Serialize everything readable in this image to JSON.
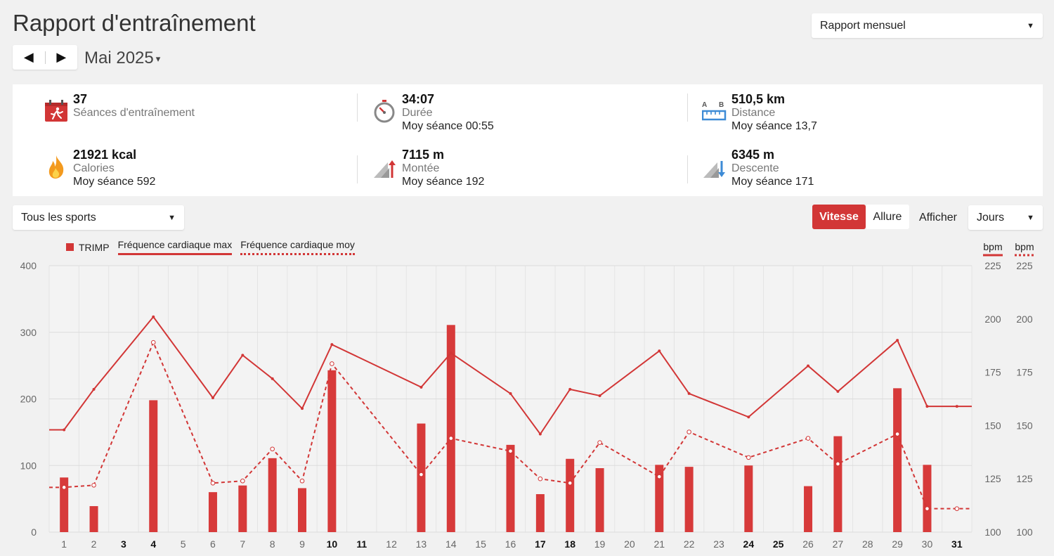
{
  "header": {
    "title": "Rapport d'entraînement",
    "prev_glyph": "◀",
    "next_glyph": "▶",
    "month": "Mai 2025",
    "month_caret": "▾",
    "report_select": "Rapport mensuel",
    "select_arrow": "▼"
  },
  "stats": [
    {
      "icon": "calendar-run-icon",
      "value": "37",
      "label": "Séances d'entraînement",
      "avg": ""
    },
    {
      "icon": "stopwatch-icon",
      "value": "34:07",
      "label": "Durée",
      "avg": "Moy séance 00:55"
    },
    {
      "icon": "ruler-icon",
      "value": "510,5 km",
      "label": "Distance",
      "avg": "Moy séance 13,7",
      "icon_labels": [
        "A",
        "B"
      ]
    },
    {
      "icon": "flame-icon",
      "value": "21921 kcal",
      "label": "Calories",
      "avg": "Moy séance 592"
    },
    {
      "icon": "ascent-icon",
      "value": "7115 m",
      "label": "Montée",
      "avg": "Moy séance 192"
    },
    {
      "icon": "descent-icon",
      "value": "6345 m",
      "label": "Descente",
      "avg": "Moy séance 171"
    }
  ],
  "controls": {
    "sport_select": "Tous les sports",
    "toggle": [
      "Vitesse",
      "Allure"
    ],
    "active_toggle": "Vitesse",
    "afficher_label": "Afficher",
    "period_select": "Jours"
  },
  "colors": {
    "accent": "#d23636",
    "bar": "#d73a3a",
    "grid": "#e4e4e4"
  },
  "chart_data": {
    "type": "bar",
    "legend": [
      "TRIMP",
      "Fréquence cardiaque max",
      "Fréquence cardiaque moy"
    ],
    "right_axis_units": [
      "bpm",
      "bpm"
    ],
    "x": [
      1,
      2,
      3,
      4,
      5,
      6,
      7,
      8,
      9,
      10,
      11,
      12,
      13,
      14,
      15,
      16,
      17,
      18,
      19,
      20,
      21,
      22,
      23,
      24,
      25,
      26,
      27,
      28,
      29,
      30,
      31
    ],
    "bold_days": [
      3,
      4,
      10,
      11,
      17,
      18,
      24,
      25,
      31
    ],
    "left_axis": {
      "ylim": [
        0,
        400
      ],
      "ticks": [
        0,
        100,
        200,
        300,
        400
      ]
    },
    "right_axis": {
      "ylim": [
        100,
        225
      ],
      "ticks": [
        100,
        125,
        150,
        175,
        200,
        225
      ]
    },
    "series": [
      {
        "name": "TRIMP",
        "type": "bar",
        "axis": "left",
        "values": [
          82,
          39,
          null,
          198,
          null,
          60,
          70,
          111,
          66,
          243,
          null,
          null,
          163,
          311,
          null,
          131,
          57,
          110,
          96,
          null,
          101,
          98,
          null,
          100,
          null,
          69,
          144,
          null,
          216,
          101,
          null
        ]
      },
      {
        "name": "Fréquence cardiaque max",
        "type": "line",
        "axis": "right",
        "style": "solid",
        "values": [
          148,
          167,
          null,
          201,
          null,
          163,
          183,
          172,
          158,
          188,
          null,
          null,
          168,
          184,
          null,
          165,
          146,
          167,
          164,
          null,
          185,
          165,
          null,
          154,
          null,
          178,
          166,
          null,
          190,
          159,
          159
        ]
      },
      {
        "name": "Fréquence cardiaque moy",
        "type": "line",
        "axis": "right",
        "style": "dashed",
        "values": [
          121,
          122,
          null,
          189,
          null,
          123,
          124,
          139,
          124,
          179,
          null,
          null,
          127,
          144,
          null,
          138,
          125,
          123,
          142,
          null,
          126,
          147,
          null,
          135,
          null,
          144,
          132,
          null,
          146,
          111,
          111
        ]
      }
    ]
  }
}
